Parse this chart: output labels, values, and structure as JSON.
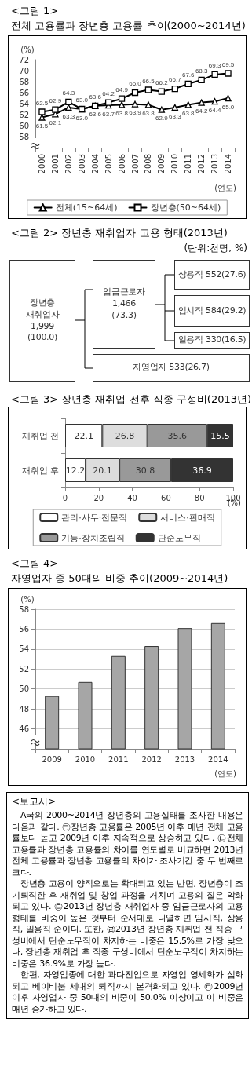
{
  "chart_data": [
    {
      "type": "line",
      "title": "<그림 1>",
      "subtitle": "전체 고용률과 장년층 고용률 추이(2000~2014년)",
      "xlabel": "(연도)",
      "ylabel": "(%)",
      "categories": [
        "2000",
        "2001",
        "2002",
        "2003",
        "2004",
        "2005",
        "2006",
        "2007",
        "2008",
        "2009",
        "2010",
        "2011",
        "2012",
        "2013",
        "2014"
      ],
      "series": [
        {
          "name": "전체(15~64세)",
          "color": "#000000",
          "marker": "triangle",
          "values": [
            61.5,
            62.1,
            63.3,
            63.0,
            63.6,
            63.7,
            63.8,
            63.9,
            63.8,
            62.9,
            63.3,
            63.8,
            64.2,
            64.4,
            65.0
          ],
          "value_labels": [
            "61.5",
            "62.1",
            "63.3",
            "63.0",
            "63.6",
            "63.7",
            "63.8",
            "63.9",
            "63.8",
            "62.9",
            "63.3",
            "63.8",
            "64.2",
            "64.4",
            "65.0"
          ]
        },
        {
          "name": "장년층(50~64세)",
          "color": "#000000",
          "marker": "square",
          "values": [
            62.5,
            62.9,
            64.3,
            63.0,
            63.6,
            64.2,
            64.9,
            66.0,
            66.5,
            66.2,
            66.7,
            67.6,
            68.3,
            69.3,
            69.5
          ],
          "value_labels": [
            "62.5",
            "62.9",
            "64.3",
            "63.0",
            "63.6",
            "64.2",
            "64.9",
            "66.0",
            "66.5",
            "66.2",
            "66.7",
            "67.6",
            "68.3",
            "69.3",
            "69.5"
          ]
        }
      ],
      "ylim": [
        56,
        72
      ],
      "yticks": [
        58,
        60,
        62,
        64,
        66,
        68,
        70,
        72
      ],
      "grid": false,
      "legend": "bottom",
      "data_labels": true,
      "line_style": "solid"
    },
    {
      "type": "other",
      "title": "<그림 2> 장년층 재취업자 고용 형태(2013년)",
      "subtitle": "(단위:천명, %)",
      "annotations": [
        "장년층\n재취업자\n1,999\n(100.0)",
        "임금근로자\n1,466\n(73.3)",
        "상용직 552(27.6)",
        "임시직 584(29.2)",
        "일용직 330(16.5)",
        "자영업자 533(26.7)"
      ]
    },
    {
      "type": "bar",
      "orientation": "horizontal",
      "stacked": true,
      "title": "<그림 3> 장년층 재취업 전후 직종 구성비(2013년)",
      "xlabel": "(%)",
      "categories": [
        "재취업 전",
        "재취업 후"
      ],
      "series": [
        {
          "name": "관리·사무·전문직",
          "color": "#ffffff",
          "values": [
            22.1,
            12.2
          ]
        },
        {
          "name": "서비스·판매직",
          "color": "#dddddd",
          "values": [
            26.8,
            20.1
          ]
        },
        {
          "name": "기능·장치조립직",
          "color": "#999999",
          "values": [
            35.6,
            30.8
          ]
        },
        {
          "name": "단순노무직",
          "color": "#333333",
          "values": [
            15.5,
            36.9
          ]
        }
      ],
      "xlim": [
        0,
        100
      ],
      "xticks": [
        0,
        20,
        40,
        60,
        80,
        100
      ],
      "grid": false,
      "legend": "bottom",
      "data_labels": true
    },
    {
      "type": "bar",
      "title": "<그림 4>",
      "subtitle": "자영업자 중 50대의 비중 추이(2009~2014년)",
      "xlabel": "(연도)",
      "ylabel": "(%)",
      "categories": [
        "2009",
        "2010",
        "2011",
        "2012",
        "2013",
        "2014"
      ],
      "values": [
        49.3,
        50.7,
        53.3,
        54.3,
        56.1,
        56.6
      ],
      "color": "#a6a6a6",
      "ylim": [
        44,
        58
      ],
      "yticks": [
        46,
        48,
        50,
        52,
        54,
        56,
        58
      ],
      "grid": "y"
    },
    {
      "type": "other",
      "title": "<보고서>",
      "annotations": [
        "A국의 2000~2014년 장년층의 고용실태를 조사한 내용은 다음과 같다. ㉠장년층 고용률은 2005년 이후 매년 전체 고용률보다 높고 2009년 이후 지속적으로 상승하고 있다. ㉡전체 고용률과 장년층 고용률의 차이를 연도별로 비교하면 2013년 전체 고용률과 장년층 고용률의 차이가 조사기간 중 두 번째로 크다.",
        "장년층 고용이 양적으로는 확대되고 있는 반면, 장년층이 조기퇴직한 후 재취업 및 창업 과정을 거치며 고용의 질은 악화되고 있다. ㉢2013년 장년층 재취업자 중 임금근로자의 고용 형태를 비중이 높은 것부터 순서대로 나열하면 임시직, 상용직, 일용직 순이다. 또한, ㉣2013년 장년층 재취업 전 직종 구성비에서 단순노무직이 차지하는 비중은 15.5%로 가장 낮으나, 장년층 재취업 후 직종 구성비에서 단순노무직이 차지하는 비중은 36.9%로 가장 높다.",
        "한편, 자영업종에 대한 과다진입으로 자영업 영세화가 심화되고 베이비붐 세대의 퇴직까지 본격화되고 있다. ㉤2009년 이후 자영업자 중 50대의 비중이 50.0% 이상이고 이 비중은 매년 증가하고 있다."
      ]
    }
  ]
}
